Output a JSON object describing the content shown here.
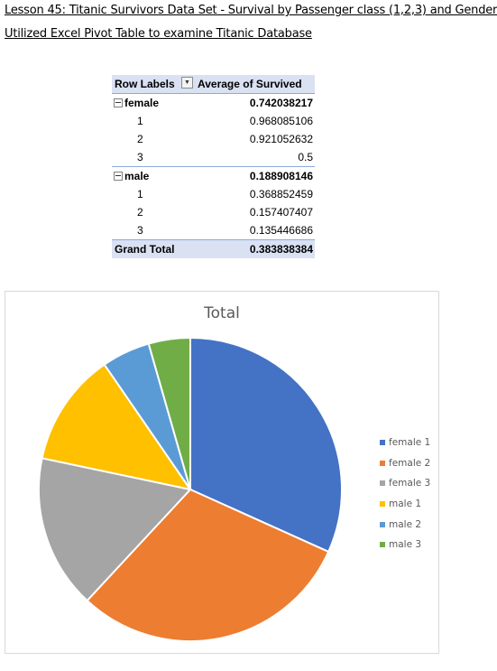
{
  "heading": {
    "line1": "Lesson 45:   Titanic Survivors Data Set - Survival by Passenger class (1,2,3) and Gender",
    "line2": "Utilized Excel Pivot Table to examine Titanic Database"
  },
  "pivot": {
    "col_label": "Row Labels",
    "col_value": "Average of Survived",
    "groups": [
      {
        "label": "female",
        "value": "0.742038217",
        "rows": [
          {
            "label": "1",
            "value": "0.968085106"
          },
          {
            "label": "2",
            "value": "0.921052632"
          },
          {
            "label": "3",
            "value": "0.5"
          }
        ]
      },
      {
        "label": "male",
        "value": "0.188908146",
        "rows": [
          {
            "label": "1",
            "value": "0.368852459"
          },
          {
            "label": "2",
            "value": "0.157407407"
          },
          {
            "label": "3",
            "value": "0.135446686"
          }
        ]
      }
    ],
    "total_label": "Grand Total",
    "total_value": "0.383838384"
  },
  "chart_data": {
    "type": "pie",
    "title": "Total",
    "categories": [
      "female 1",
      "female 2",
      "female 3",
      "male 1",
      "male 2",
      "male 3"
    ],
    "values": [
      0.968085106,
      0.921052632,
      0.5,
      0.368852459,
      0.157407407,
      0.135446686
    ],
    "colors": [
      "#4472c4",
      "#ed7d31",
      "#a5a5a5",
      "#ffc000",
      "#5b9bd5",
      "#70ad47"
    ],
    "legend": "right"
  }
}
